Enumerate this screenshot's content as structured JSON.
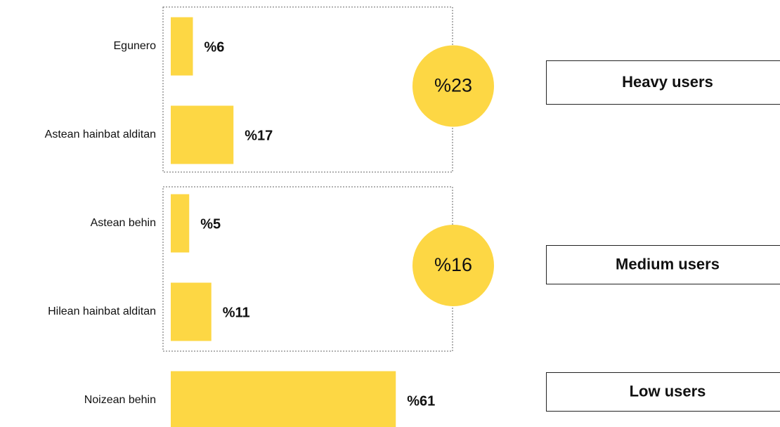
{
  "chart_data": {
    "type": "bar",
    "orientation": "horizontal",
    "color": "#fdd744",
    "groups": [
      {
        "name": "Heavy users",
        "total": 23,
        "total_label": "%23",
        "categories": [
          "Egunero",
          "Astean hainbat alditan"
        ],
        "values": [
          6,
          17
        ],
        "value_labels": [
          "%6",
          "%17"
        ]
      },
      {
        "name": "Medium users",
        "total": 16,
        "total_label": "%16",
        "categories": [
          "Astean behin",
          "Hilean hainbat alditan"
        ],
        "values": [
          5,
          11
        ],
        "value_labels": [
          "%5",
          "%11"
        ]
      },
      {
        "name": "Low users",
        "categories": [
          "Noizean behin"
        ],
        "values": [
          61
        ],
        "value_labels": [
          "%61"
        ]
      }
    ]
  }
}
